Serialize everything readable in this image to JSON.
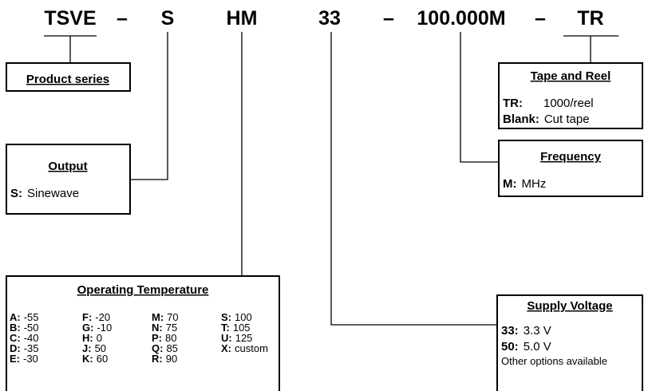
{
  "codes": [
    "TSVE",
    "–",
    "S",
    "HM",
    "33",
    "–",
    "100.000M",
    "–",
    "TR"
  ],
  "product_series": {
    "title": "Product series"
  },
  "output": {
    "title": "Output",
    "items": [
      {
        "key": "S:",
        "value": "Sinewave"
      }
    ]
  },
  "operating_temperature": {
    "title": "Operating Temperature",
    "columns": [
      [
        {
          "key": "A:",
          "value": "-55"
        },
        {
          "key": "B:",
          "value": "-50"
        },
        {
          "key": "C:",
          "value": "-40"
        },
        {
          "key": "D:",
          "value": "-35"
        },
        {
          "key": "E:",
          "value": "-30"
        }
      ],
      [
        {
          "key": "F:",
          "value": "-20"
        },
        {
          "key": "G:",
          "value": "-10"
        },
        {
          "key": "H:",
          "value": "0"
        },
        {
          "key": "J:",
          "value": "50"
        },
        {
          "key": "K:",
          "value": "60"
        }
      ],
      [
        {
          "key": "M:",
          "value": "70"
        },
        {
          "key": "N:",
          "value": "75"
        },
        {
          "key": "P:",
          "value": "80"
        },
        {
          "key": "Q:",
          "value": "85"
        },
        {
          "key": "R:",
          "value": "90"
        }
      ],
      [
        {
          "key": "S:",
          "value": "100"
        },
        {
          "key": "T:",
          "value": "105"
        },
        {
          "key": "U:",
          "value": "125"
        },
        {
          "key": "X:",
          "value": "custom"
        }
      ]
    ]
  },
  "supply_voltage": {
    "title": "Supply Voltage",
    "items": [
      {
        "key": "33:",
        "value": "3.3 V"
      },
      {
        "key": "50:",
        "value": "5.0 V"
      }
    ],
    "note": "Other options available"
  },
  "frequency": {
    "title": "Frequency",
    "items": [
      {
        "key": "M:",
        "value": "MHz"
      }
    ]
  },
  "tape_and_reel": {
    "title": "Tape and Reel",
    "items": [
      {
        "key": "TR:",
        "value": "1000/reel"
      },
      {
        "key": "Blank:",
        "value": "Cut tape"
      }
    ]
  }
}
